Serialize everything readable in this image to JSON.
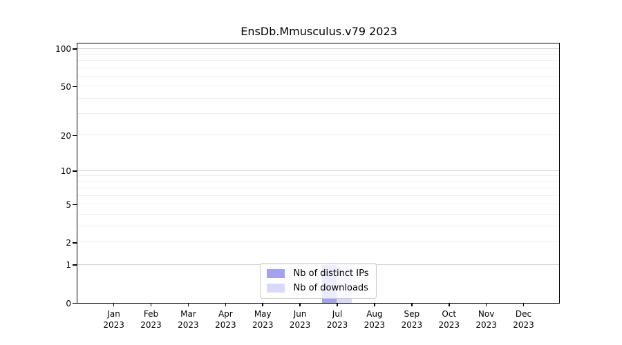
{
  "chart_data": {
    "type": "bar",
    "title": "EnsDb.Mmusculus.v79 2023",
    "categories": [
      {
        "month": "Jan",
        "year": "2023"
      },
      {
        "month": "Feb",
        "year": "2023"
      },
      {
        "month": "Mar",
        "year": "2023"
      },
      {
        "month": "Apr",
        "year": "2023"
      },
      {
        "month": "May",
        "year": "2023"
      },
      {
        "month": "Jun",
        "year": "2023"
      },
      {
        "month": "Jul",
        "year": "2023"
      },
      {
        "month": "Aug",
        "year": "2023"
      },
      {
        "month": "Sep",
        "year": "2023"
      },
      {
        "month": "Oct",
        "year": "2023"
      },
      {
        "month": "Nov",
        "year": "2023"
      },
      {
        "month": "Dec",
        "year": "2023"
      }
    ],
    "series": [
      {
        "name": "Nb of distinct IPs",
        "color": "#a2a2ee",
        "values": [
          0,
          0,
          0,
          0,
          0,
          0,
          1,
          0,
          0,
          0,
          0,
          0
        ]
      },
      {
        "name": "Nb of downloads",
        "color": "#d9d9f8",
        "values": [
          0,
          0,
          0,
          0,
          0,
          0,
          1,
          0,
          0,
          0,
          0,
          0
        ]
      }
    ],
    "xlabel": "",
    "ylabel": "",
    "yscale": "log1p",
    "ylim": [
      0,
      110
    ],
    "ytick_values": [
      0,
      1,
      2,
      5,
      10,
      20,
      50,
      100
    ],
    "ytick_labels": [
      "0",
      "1",
      "2",
      "5",
      "10",
      "20",
      "50",
      "100"
    ],
    "grid": {
      "on": true,
      "minor_values": [
        2,
        3,
        4,
        5,
        6,
        7,
        8,
        9,
        20,
        30,
        40,
        50,
        60,
        70,
        80,
        90
      ],
      "major_values": [
        1,
        10,
        100
      ],
      "minor_color": "#eeeeee",
      "major_color": "#d2d2d2"
    },
    "legend": {
      "position": "bottom-center",
      "entries": [
        "Nb of distinct IPs",
        "Nb of downloads"
      ]
    },
    "colors": {
      "axis": "#000000",
      "legend_border": "#cccccc",
      "background": "#ffffff"
    }
  }
}
